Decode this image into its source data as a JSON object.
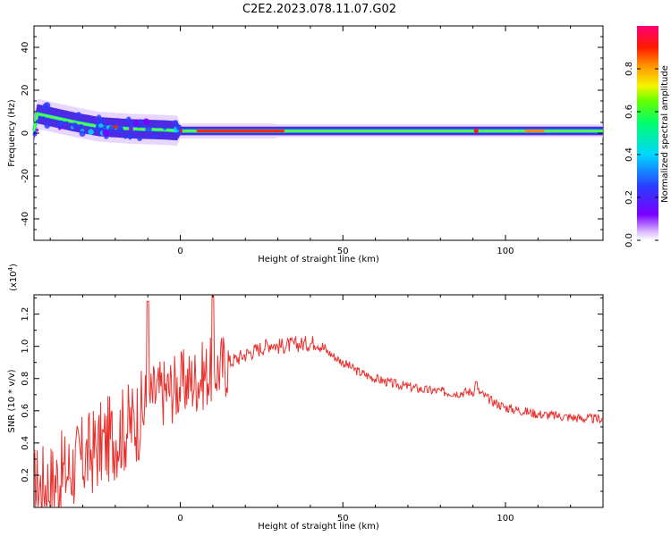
{
  "title": "C2E2.2023.078.11.07.G02",
  "chart_data": [
    {
      "type": "heatmap",
      "xlabel": "Height of straight line (km)",
      "ylabel": "Frequency (Hz)",
      "xlim": [
        -45,
        130
      ],
      "ylim": [
        -50,
        50
      ],
      "xticks": [
        0,
        50,
        100
      ],
      "xtick_labels": [
        "0",
        "50",
        "100"
      ],
      "yticks": [
        -40,
        -20,
        0,
        20,
        40
      ],
      "ytick_labels": [
        "-40",
        "-20",
        "0",
        "20",
        "40"
      ],
      "colorbar": {
        "label": "Normalized spectral amplitude",
        "range": [
          0,
          1
        ],
        "ticks": [
          0.0,
          0.2,
          0.4,
          0.6,
          0.8
        ],
        "tick_labels": [
          "0.0",
          "0.2",
          "0.4",
          "0.6",
          "0.8"
        ],
        "colormap": "rainbow: white-violet-blue-cyan-green-yellow-red-magenta"
      },
      "ridge": [
        {
          "x": -44,
          "f": 9
        },
        {
          "x": -38,
          "f": 7
        },
        {
          "x": -32,
          "f": 5
        },
        {
          "x": -25,
          "f": 3
        },
        {
          "x": -15,
          "f": 2
        },
        {
          "x": -5,
          "f": 1.5
        },
        {
          "x": 0,
          "f": 1
        },
        {
          "x": 15,
          "f": 1
        },
        {
          "x": 130,
          "f": 1
        }
      ]
    },
    {
      "type": "line",
      "xlabel": "Height of straight line (km)",
      "ylabel": "SNR (10 * v/v)",
      "y_multiplier": "(x10",
      "y_multiplier_exp": "4",
      "y_multiplier_close": ")",
      "xlim": [
        -45,
        130
      ],
      "ylim": [
        0,
        1.32
      ],
      "xticks": [
        0,
        50,
        100
      ],
      "xtick_labels": [
        "0",
        "50",
        "100"
      ],
      "yticks": [
        0.2,
        0.4,
        0.6,
        0.8,
        1.0,
        1.2
      ],
      "ytick_labels": [
        "0.2",
        "0.4",
        "0.6",
        "0.8",
        "1.0",
        "1.2"
      ],
      "color": "#e8312e",
      "series": [
        {
          "x": [
            -45,
            -40,
            -35,
            -30,
            -25,
            -20,
            -15,
            -12,
            -10,
            -8,
            -5,
            0,
            5,
            10,
            15,
            20,
            25,
            28,
            30,
            35,
            40,
            42,
            45,
            50,
            55,
            60,
            65,
            70,
            75,
            80,
            85,
            90,
            91,
            95,
            100,
            105,
            110,
            115,
            120,
            125,
            130
          ],
          "y": [
            0.12,
            0.15,
            0.22,
            0.3,
            0.38,
            0.45,
            0.52,
            0.58,
            0.65,
            0.7,
            0.72,
            0.76,
            0.8,
            0.85,
            0.9,
            0.95,
            0.99,
            1.02,
            1.0,
            1.01,
            1.02,
            1.03,
            0.97,
            0.9,
            0.84,
            0.8,
            0.77,
            0.75,
            0.73,
            0.72,
            0.71,
            0.72,
            0.73,
            0.67,
            0.62,
            0.6,
            0.58,
            0.57,
            0.56,
            0.55,
            0.55
          ]
        }
      ],
      "spikes": [
        {
          "x": -10,
          "y": 1.28
        },
        {
          "x": 10,
          "y": 1.33
        },
        {
          "x": 91,
          "y": 0.78
        }
      ]
    }
  ]
}
